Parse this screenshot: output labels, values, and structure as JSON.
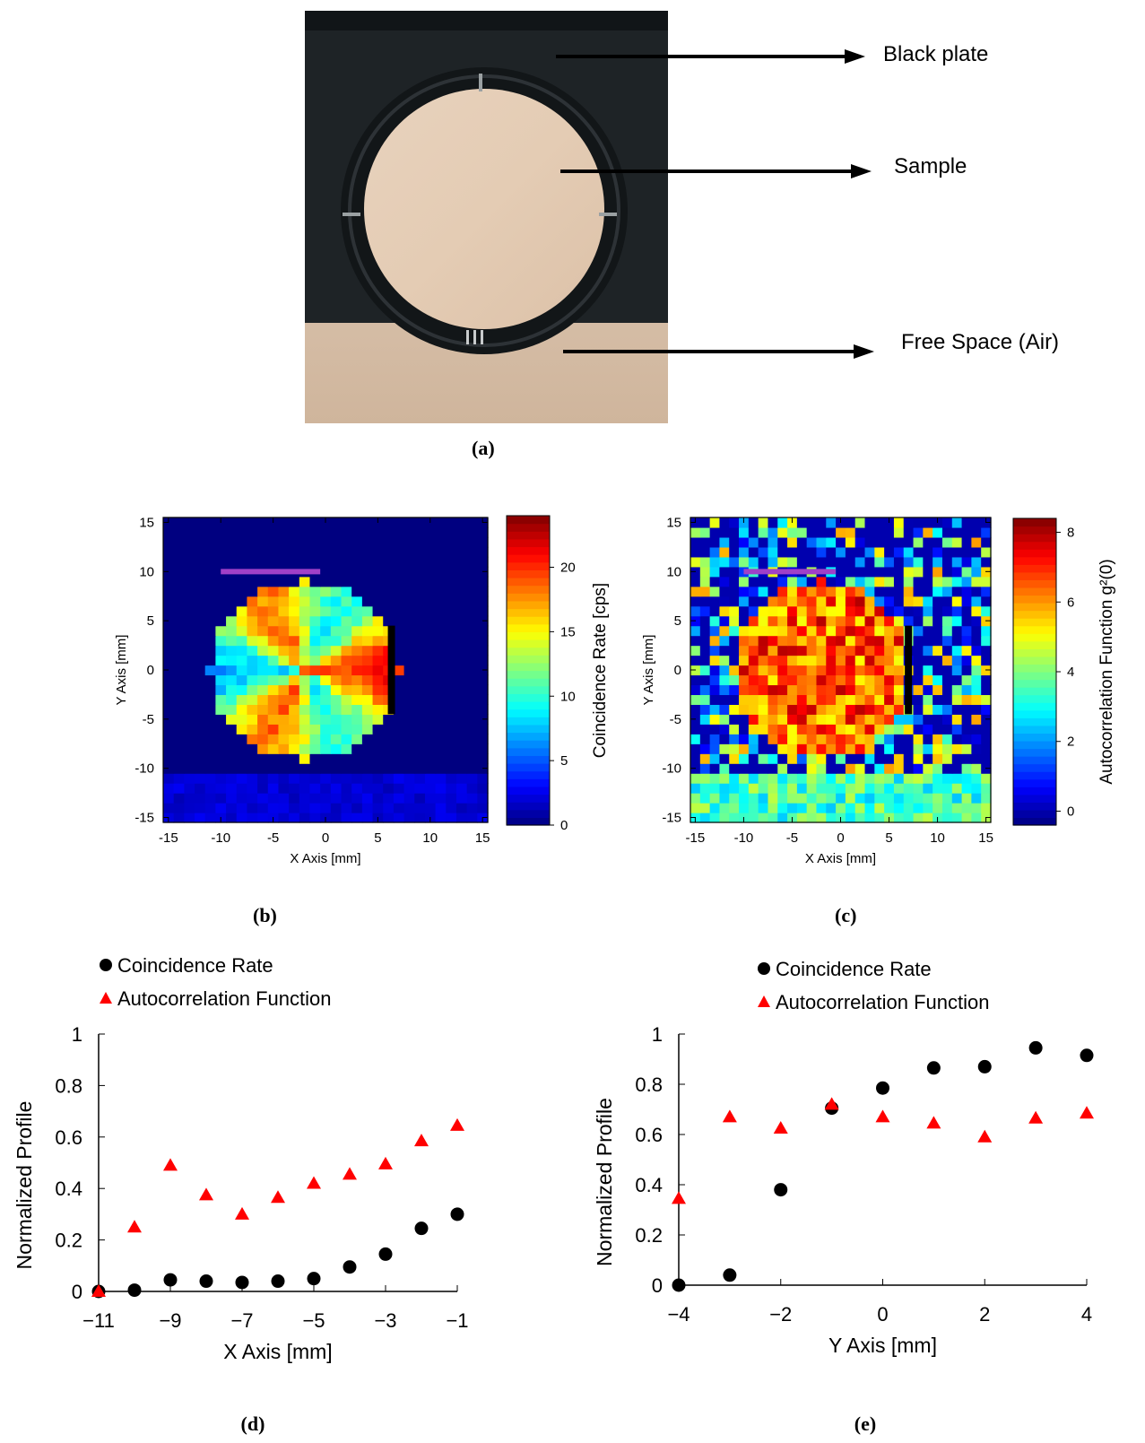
{
  "panel_a": {
    "caption": "(a)",
    "callouts": [
      "Black plate",
      "Sample",
      "Free Space (Air)"
    ]
  },
  "colors": {
    "black_plate": "#1e2326",
    "sample": "#e6cfb9",
    "air": "#ddc5ae",
    "red_marker": "#ff0000",
    "magenta_line": "#a040c8"
  },
  "chart_data": [
    {
      "panel": "(b)",
      "type": "heatmap",
      "xlabel": "X Axis [mm]",
      "ylabel": "Y Axis [mm]",
      "xlim": [
        -15.5,
        15.5
      ],
      "ylim": [
        -15.5,
        15.5
      ],
      "xticks": [
        -15,
        -10,
        -5,
        0,
        5,
        10,
        15
      ],
      "yticks": [
        -15,
        -10,
        -5,
        0,
        5,
        10,
        15
      ],
      "colorbar": {
        "label": "Coincidence Rate [cps]",
        "range": [
          0,
          24
        ],
        "ticks": [
          0,
          5,
          10,
          15,
          20
        ]
      },
      "sample_region": {
        "shape": "circle",
        "center": [
          -2,
          0
        ],
        "radius": 9,
        "approx_range": [
          5,
          23
        ]
      },
      "air_region": {
        "y_below": -10,
        "approx_value": 2
      },
      "background_value": 0,
      "annotations": [
        {
          "type": "line",
          "color": "magenta",
          "from": [
            -10,
            10
          ],
          "to": [
            -0.5,
            10
          ]
        },
        {
          "type": "line",
          "color": "black",
          "from": [
            6.3,
            4.5
          ],
          "to": [
            6.3,
            -4.5
          ]
        }
      ]
    },
    {
      "panel": "(c)",
      "type": "heatmap",
      "xlabel": "X Axis [mm]",
      "ylabel": "Y Axis [mm]",
      "xlim": [
        -15.5,
        15.5
      ],
      "ylim": [
        -15.5,
        15.5
      ],
      "xticks": [
        -15,
        -10,
        -5,
        0,
        5,
        10,
        15
      ],
      "yticks": [
        -15,
        -10,
        -5,
        0,
        5,
        10,
        15
      ],
      "colorbar": {
        "label": "Autocorrelation Function g²(0)",
        "range": [
          -0.4,
          8.4
        ],
        "ticks": [
          0,
          2,
          4,
          6,
          8
        ]
      },
      "sample_region": {
        "shape": "circle",
        "center": [
          -2,
          0
        ],
        "radius": 9,
        "approx_range": [
          5,
          8
        ]
      },
      "air_region": {
        "y_below": -10,
        "approx_value": 3.5
      },
      "background_value": "random 0–6",
      "annotations": [
        {
          "type": "line",
          "color": "magenta",
          "from": [
            -10,
            10
          ],
          "to": [
            -0.5,
            10
          ]
        },
        {
          "type": "line",
          "color": "black",
          "from": [
            7,
            4.5
          ],
          "to": [
            7,
            -4.5
          ]
        }
      ]
    },
    {
      "panel": "(d)",
      "type": "scatter",
      "xlabel": "X Axis [mm]",
      "ylabel": "Normalized Profile",
      "xlim": [
        -11,
        -1
      ],
      "ylim": [
        0,
        1
      ],
      "xticks": [
        -11,
        -9,
        -7,
        -5,
        -3,
        -1
      ],
      "yticks": [
        0,
        0.2,
        0.4,
        0.6,
        0.8,
        1
      ],
      "legend": "top-left",
      "series": [
        {
          "name": "Coincidence Rate",
          "marker": "circle",
          "color": "#000000",
          "x": [
            -11,
            -10,
            -9,
            -8,
            -7,
            -6,
            -5,
            -4,
            -3,
            -2,
            -1
          ],
          "y": [
            0,
            0.005,
            0.045,
            0.04,
            0.035,
            0.04,
            0.05,
            0.095,
            0.145,
            0.245,
            0.3
          ]
        },
        {
          "name": "Autocorrelation Function",
          "marker": "triangle",
          "color": "#ff0000",
          "x": [
            -11,
            -10,
            -9,
            -8,
            -7,
            -6,
            -5,
            -4,
            -3,
            -2,
            -1
          ],
          "y": [
            0,
            0.25,
            0.49,
            0.375,
            0.3,
            0.365,
            0.42,
            0.455,
            0.495,
            0.585,
            0.645
          ]
        }
      ]
    },
    {
      "panel": "(e)",
      "type": "scatter",
      "xlabel": "Y Axis [mm]",
      "ylabel": "Normalized Profile",
      "xlim": [
        -4,
        4
      ],
      "ylim": [
        0,
        1
      ],
      "xticks": [
        -4,
        -2,
        0,
        2,
        4
      ],
      "yticks": [
        0,
        0.2,
        0.4,
        0.6,
        0.8,
        1
      ],
      "legend": "top",
      "series": [
        {
          "name": "Coincidence Rate",
          "marker": "circle",
          "color": "#000000",
          "x": [
            -4,
            -3,
            -2,
            -1,
            0,
            1,
            2,
            3,
            4
          ],
          "y": [
            0,
            0.04,
            0.38,
            0.705,
            0.785,
            0.865,
            0.87,
            0.945,
            0.915
          ]
        },
        {
          "name": "Autocorrelation Function",
          "marker": "triangle",
          "color": "#ff0000",
          "x": [
            -4,
            -3,
            -2,
            -1,
            0,
            1,
            2,
            3,
            4
          ],
          "y": [
            0.345,
            0.67,
            0.625,
            0.72,
            0.67,
            0.645,
            0.59,
            0.665,
            0.685
          ]
        }
      ]
    }
  ]
}
